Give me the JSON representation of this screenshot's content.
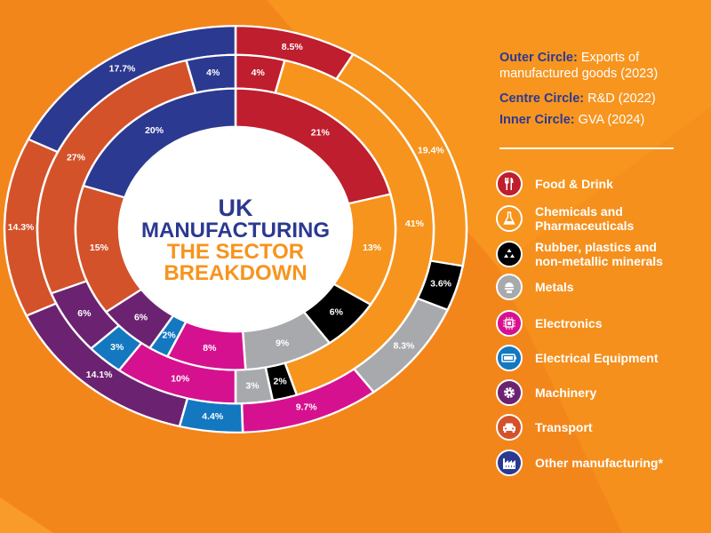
{
  "legend_header": {
    "outer": {
      "label": "Outer Circle:",
      "text": "Exports of manufactured goods (2023)"
    },
    "centre": {
      "label": "Centre Circle:",
      "text": "R&D (2022)"
    },
    "inner": {
      "label": "Inner Circle:",
      "text": "GVA (2024)"
    }
  },
  "chart_data": {
    "type": "pie",
    "subtype": "multi-ring donut",
    "title_lines": [
      "UK",
      "MANUFACTURING",
      "THE SECTOR",
      "BREAKDOWN"
    ],
    "title_colors": [
      "#2b3990",
      "#2b3990",
      "#f7941d",
      "#f7941d"
    ],
    "categories": [
      "Food & Drink",
      "Chemicals and Pharmaceuticals",
      "Rubber, plastics and non-metallic minerals",
      "Metals",
      "Electronics",
      "Electrical Equipment",
      "Machinery",
      "Transport",
      "Other manufacturing*"
    ],
    "colors": [
      "#be1e2d",
      "#f7941d",
      "#000000",
      "#a7a9ac",
      "#d6118f",
      "#1378c0",
      "#6b2371",
      "#d3522a",
      "#2b3990"
    ],
    "icons": [
      "fork-knife-icon",
      "flask-icon",
      "recycle-icon",
      "furnace-icon",
      "chip-icon",
      "battery-icon",
      "gear-icon",
      "car-icon",
      "factory-icon"
    ],
    "series": [
      {
        "name": "Outer Circle",
        "values": [
          8.5,
          19.4,
          3.6,
          8.3,
          9.7,
          4.4,
          14.1,
          14.3,
          17.7
        ],
        "labels": [
          "8.5%",
          "19.4%",
          "3.6%",
          "8.3%",
          "9.7%",
          "4.4%",
          "14.1%",
          "14.3%",
          "17.7%"
        ]
      },
      {
        "name": "Centre Circle",
        "values": [
          4,
          41,
          2,
          3,
          10,
          3,
          6,
          27,
          4
        ],
        "labels": [
          "4%",
          "41%",
          "2%",
          "3%",
          "10%",
          "3%",
          "6%",
          "27%",
          "4%"
        ]
      },
      {
        "name": "Inner Circle",
        "values": [
          21,
          13,
          6,
          9,
          8,
          2,
          6,
          15,
          20
        ],
        "labels": [
          "21%",
          "13%",
          "6%",
          "9%",
          "8%",
          "2%",
          "6%",
          "15%",
          "20%"
        ]
      }
    ],
    "legend_position": "right"
  },
  "legend_items": [
    {
      "label": "Food & Drink"
    },
    {
      "label": "Chemicals and Pharmaceuticals"
    },
    {
      "label": "Rubber, plastics and non-metallic minerals"
    },
    {
      "label": "Metals"
    },
    {
      "label": "Electronics"
    },
    {
      "label": "Electrical Equipment"
    },
    {
      "label": "Machinery"
    },
    {
      "label": "Transport"
    },
    {
      "label": "Other manufacturing*"
    }
  ]
}
